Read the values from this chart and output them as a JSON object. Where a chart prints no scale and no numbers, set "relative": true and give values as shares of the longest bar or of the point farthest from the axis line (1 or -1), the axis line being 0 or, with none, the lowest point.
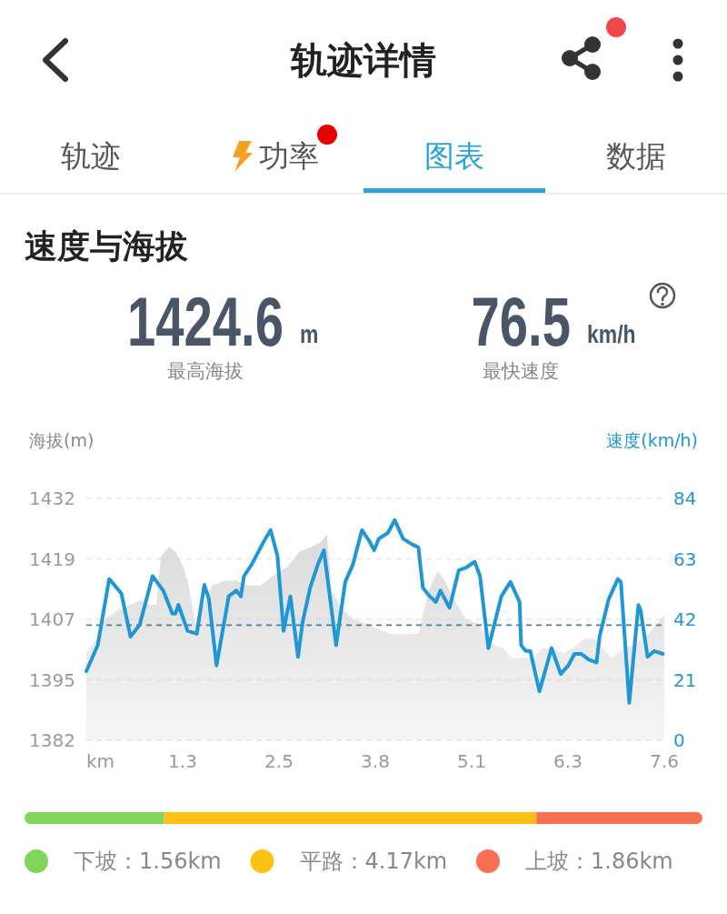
{
  "chart_data": [
    {
      "type": "other",
      "title": "轨迹详情",
      "categories": [
        "轨迹",
        "功率",
        "图表",
        "数据"
      ],
      "colors": [
        "#555555",
        "#555555",
        "#29a3d9",
        "#555555"
      ]
    },
    {
      "type": "line",
      "title": "速度与海拔",
      "annotations": [
        "1424.6",
        "m",
        "最高海拔",
        "76.5",
        "km/h",
        "最快速度"
      ],
      "xlabel": "km",
      "ylabel": "海拔(m)",
      "y2label": "速度(km/h)",
      "xlim": [
        0,
        7.59
      ],
      "xticks": [
        {
          "value": 1.265,
          "label": "1.3"
        },
        {
          "value": 2.53,
          "label": "2.5"
        },
        {
          "value": 3.795,
          "label": "3.8"
        },
        {
          "value": 5.06,
          "label": "5.1"
        },
        {
          "value": 6.325,
          "label": "6.3"
        },
        {
          "value": 7.59,
          "label": "7.6"
        }
      ],
      "ylim": [
        1382,
        1432
      ],
      "yticks": [
        1382,
        {
          "value": 1394.5,
          "label": "1395"
        },
        1407,
        {
          "value": 1419.5,
          "label": "1419"
        },
        1432
      ],
      "y2lim": [
        0,
        84
      ],
      "y2ticks": [
        0,
        21,
        42,
        63,
        84
      ],
      "grid": "y",
      "ref_lines": [
        {
          "axis": "y2",
          "value": 40,
          "color": "#3f7fae",
          "line_style": "dashed"
        }
      ],
      "series": [
        {
          "type": "area",
          "color": "#d6d6d6",
          "x": [
            0,
            0.14,
            0.24,
            0.42,
            0.58,
            0.72,
            0.82,
            0.92,
            0.98,
            1.09,
            1.17,
            1.27,
            1.33,
            1.39,
            1.43,
            1.51,
            1.65,
            1.81,
            1.97,
            2.13,
            2.29,
            2.45,
            2.65,
            2.8,
            2.96,
            3.08,
            3.16,
            3.22,
            3.36,
            3.52,
            3.68,
            3.84,
            4,
            4.36,
            4.42,
            4.5,
            4.61,
            4.71,
            4.83,
            4.99,
            5.15,
            5.19,
            5.31,
            5.47,
            5.59,
            5.75,
            5.87,
            5.99,
            6.11,
            6.27,
            6.39,
            6.54,
            6.66,
            6.78,
            6.9,
            7.06,
            7.22,
            7.38,
            7.59
          ],
          "values": [
            1400,
            1403,
            1407,
            1409,
            1410,
            1411,
            1410,
            1410,
            1420,
            1422,
            1421,
            1418,
            1415,
            1410,
            1406,
            1409,
            1414,
            1415,
            1415,
            1414,
            1414,
            1416,
            1418,
            1421,
            1422,
            1423,
            1424.6,
            1413,
            1409,
            1407,
            1406,
            1405,
            1404,
            1404,
            1408,
            1413,
            1417,
            1415,
            1411,
            1407,
            1406,
            1405,
            1402,
            1401,
            1399,
            1399,
            1399,
            1401,
            1401,
            1400,
            1401,
            1403,
            1403,
            1401,
            1399,
            1401,
            1402,
            1404,
            1408
          ]
        },
        {
          "type": "line",
          "axis": "y2",
          "color": "#2196d4",
          "x": [
            0,
            0.15,
            0.3,
            0.46,
            0.58,
            0.7,
            0.87,
            1.01,
            1.13,
            1.17,
            1.21,
            1.33,
            1.45,
            1.55,
            1.61,
            1.71,
            1.87,
            1.97,
            2.03,
            2.07,
            2.17,
            2.33,
            2.42,
            2.51,
            2.59,
            2.68,
            2.78,
            2.84,
            2.94,
            3.04,
            3.12,
            3.28,
            3.4,
            3.5,
            3.62,
            3.72,
            3.78,
            3.84,
            3.96,
            4.05,
            4.16,
            4.28,
            4.36,
            4.42,
            4.51,
            4.59,
            4.65,
            4.77,
            4.89,
            4.99,
            5.1,
            5.17,
            5.28,
            5.45,
            5.57,
            5.69,
            5.71,
            5.77,
            5.83,
            5.95,
            6.11,
            6.23,
            6.33,
            6.41,
            6.5,
            6.6,
            6.7,
            6.74,
            6.86,
            6.98,
            7.02,
            7.13,
            7.25,
            7.28,
            7.37,
            7.46,
            7.57
          ],
          "values": [
            24,
            33,
            56,
            51,
            36,
            40,
            57,
            52,
            44,
            44,
            47,
            38,
            37,
            54,
            49,
            26,
            50,
            52,
            50,
            57,
            61,
            69,
            73,
            64,
            38,
            50,
            29,
            41,
            53,
            61,
            66,
            33,
            55,
            61,
            73,
            69,
            66,
            70,
            72,
            76.5,
            70,
            68,
            67,
            53,
            50,
            48,
            52,
            46,
            59,
            60,
            62,
            57,
            32,
            50,
            55,
            48,
            33,
            31,
            31,
            17,
            32,
            23,
            26,
            30,
            30,
            28,
            27,
            36,
            49,
            56,
            55,
            13,
            47,
            45,
            29,
            31,
            30
          ]
        }
      ]
    },
    {
      "type": "bar",
      "orientation": "horizontal",
      "stacked": true,
      "relative": true,
      "legend": "bottom",
      "categories": [
        null
      ],
      "series": [
        {
          "name": "下坡：1.56km",
          "color": "#80d65a",
          "values": [
            0.206
          ]
        },
        {
          "name": "平路：4.17km",
          "color": "#fdc113",
          "values": [
            0.549
          ]
        },
        {
          "name": "上坡：1.86km",
          "color": "#f86f52",
          "values": [
            0.245
          ]
        }
      ]
    }
  ]
}
